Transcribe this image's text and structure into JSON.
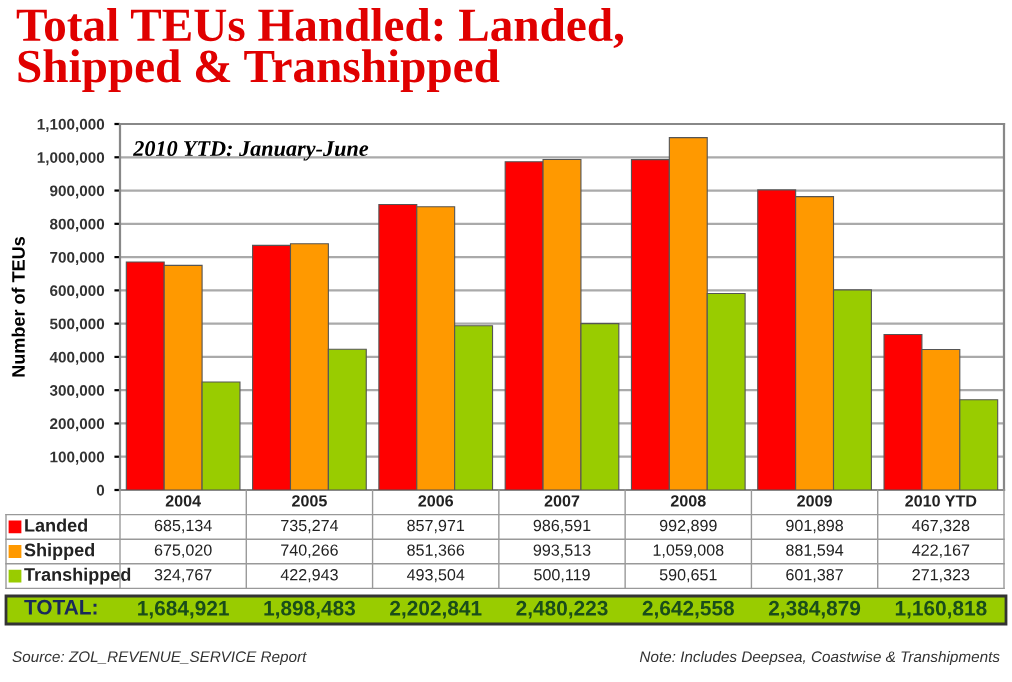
{
  "chart_data": {
    "type": "bar",
    "title": "Total TEUs Handled: Landed,\nShipped & Transhipped",
    "subtitle": "2010 YTD: January-June",
    "ylabel": "Number of TEUs",
    "categories": [
      "2004",
      "2005",
      "2006",
      "2007",
      "2008",
      "2009",
      "2010 YTD"
    ],
    "series": [
      {
        "name": "Landed",
        "color": "#ff0000",
        "values": [
          685134,
          735274,
          857971,
          986591,
          992899,
          901898,
          467328
        ]
      },
      {
        "name": "Shipped",
        "color": "#ff9900",
        "values": [
          675020,
          740266,
          851366,
          993513,
          1059008,
          881594,
          422167
        ]
      },
      {
        "name": "Transhipped",
        "color": "#99cc00",
        "values": [
          324767,
          422943,
          493504,
          500119,
          590651,
          601387,
          271323
        ]
      }
    ],
    "ylim": [
      0,
      1100000
    ],
    "yticks": [
      0,
      {
        "value": 100000,
        "label": "100,000"
      },
      {
        "value": 200000,
        "label": "200,000"
      },
      {
        "value": 300000,
        "label": "300,000"
      },
      {
        "value": 400000,
        "label": "400,000"
      },
      {
        "value": 500000,
        "label": "500,000"
      },
      {
        "value": 600000,
        "label": "600,000"
      },
      {
        "value": 700000,
        "label": "700,000"
      },
      {
        "value": 800000,
        "label": "800,000"
      },
      {
        "value": 900000,
        "label": "900,000"
      },
      {
        "value": 1000000,
        "label": "1,000,000"
      },
      {
        "value": 1100000,
        "label": "1,100,000"
      }
    ],
    "grid": "y",
    "legend": "bottom left",
    "annotations": [
      "685,134",
      "735,274",
      "857,971",
      "986,591",
      "992,899",
      "901,898",
      "467,328",
      "675,020",
      "740,266",
      "851,366",
      "993,513",
      "1,059,008",
      "881,594",
      "422,167",
      "324,767",
      "422,943",
      "493,504",
      "500,119",
      "590,651",
      "601,387",
      "271,323",
      "TOTAL:",
      "1,684,921",
      "1,898,483",
      "2,202,841",
      "2,480,223",
      "2,642,558",
      "2,384,879",
      "1,160,818",
      "Source: ZOL_REVENUE_SERVICE Report",
      "Note: Includes Deepsea, Coastwise & Transhipments"
    ]
  }
}
